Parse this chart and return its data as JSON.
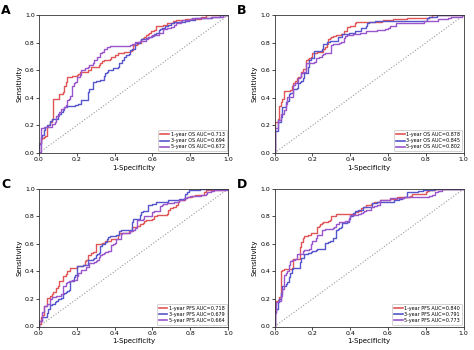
{
  "panels": [
    {
      "label": "A",
      "legend": [
        {
          "text": "1-year OS AUC=0.713",
          "color": "#e05555"
        },
        {
          "text": "3-year OS AUC=0.694",
          "color": "#5555cc"
        },
        {
          "text": "5-year OS AUC=0.672",
          "color": "#9955cc"
        }
      ],
      "curves": [
        {
          "auc": 0.713,
          "color": "#e05555",
          "seed": 101
        },
        {
          "auc": 0.694,
          "color": "#5555cc",
          "seed": 202
        },
        {
          "auc": 0.672,
          "color": "#9955cc",
          "seed": 303
        }
      ]
    },
    {
      "label": "B",
      "legend": [
        {
          "text": "1-year OS AUC=0.878",
          "color": "#e05555"
        },
        {
          "text": "3-year OS AUC=0.845",
          "color": "#5555cc"
        },
        {
          "text": "5-year OS AUC=0.802",
          "color": "#9955cc"
        }
      ],
      "curves": [
        {
          "auc": 0.878,
          "color": "#e05555",
          "seed": 404
        },
        {
          "auc": 0.845,
          "color": "#5555cc",
          "seed": 505
        },
        {
          "auc": 0.802,
          "color": "#9955cc",
          "seed": 606
        }
      ]
    },
    {
      "label": "C",
      "legend": [
        {
          "text": "1-year PFS AUC=0.718",
          "color": "#e05555"
        },
        {
          "text": "3-year PFS AUC=0.679",
          "color": "#5555cc"
        },
        {
          "text": "5-year PFS AUC=0.664",
          "color": "#9955cc"
        }
      ],
      "curves": [
        {
          "auc": 0.718,
          "color": "#e05555",
          "seed": 707
        },
        {
          "auc": 0.679,
          "color": "#5555cc",
          "seed": 808
        },
        {
          "auc": 0.664,
          "color": "#9955cc",
          "seed": 909
        }
      ]
    },
    {
      "label": "D",
      "legend": [
        {
          "text": "1-year PFS AUC=0.840",
          "color": "#e05555"
        },
        {
          "text": "3-year PFS AUC=0.791",
          "color": "#5555cc"
        },
        {
          "text": "5-year PFS AUC=0.773",
          "color": "#9955cc"
        }
      ],
      "curves": [
        {
          "auc": 0.84,
          "color": "#e05555",
          "seed": 1010
        },
        {
          "auc": 0.791,
          "color": "#5555cc",
          "seed": 1111
        },
        {
          "auc": 0.773,
          "color": "#9955cc",
          "seed": 1212
        }
      ]
    }
  ],
  "xlabel": "1-Specificity",
  "ylabel": "Sensitivity",
  "bg_color": "#ffffff",
  "plot_bg": "#ffffff"
}
